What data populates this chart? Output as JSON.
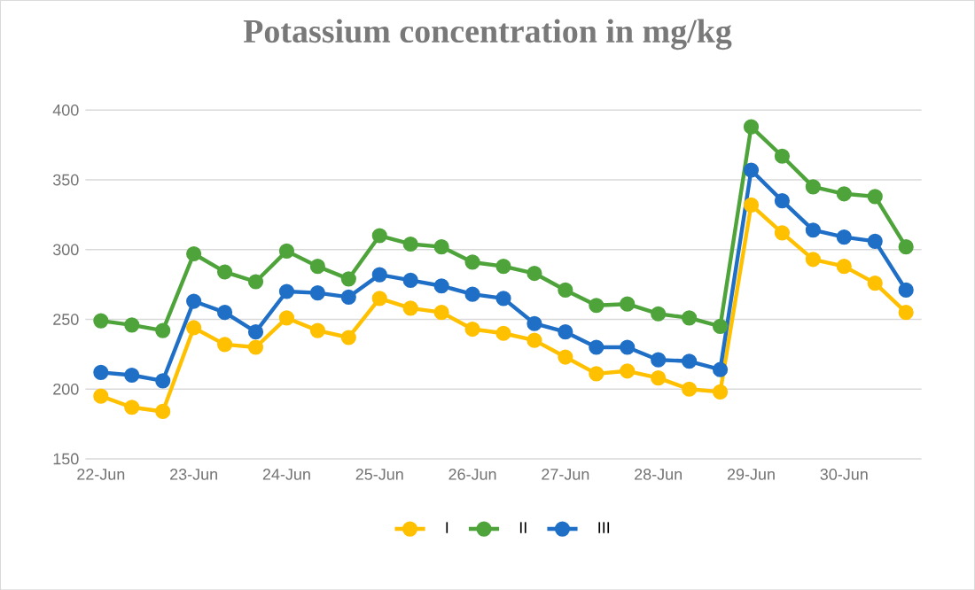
{
  "chart_data": {
    "type": "line",
    "title": "Potassium concentration in mg/kg",
    "categories": [
      "22-Jun",
      null,
      null,
      "23-Jun",
      null,
      null,
      "24-Jun",
      null,
      null,
      "25-Jun",
      null,
      null,
      "26-Jun",
      null,
      null,
      "27-Jun",
      null,
      null,
      "28-Jun",
      null,
      null,
      "29-Jun",
      null,
      null,
      "30-Jun",
      null,
      null
    ],
    "series": [
      {
        "name": "I",
        "color": "#ffc000",
        "values": [
          195,
          187,
          184,
          244,
          232,
          230,
          251,
          242,
          237,
          265,
          258,
          255,
          243,
          240,
          235,
          223,
          211,
          213,
          208,
          200,
          198,
          332,
          312,
          293,
          288,
          276,
          255
        ]
      },
      {
        "name": "II",
        "color": "#4ea43a",
        "values": [
          249,
          246,
          242,
          297,
          284,
          277,
          299,
          288,
          279,
          310,
          304,
          302,
          291,
          288,
          283,
          271,
          260,
          261,
          254,
          251,
          245,
          388,
          367,
          345,
          340,
          338,
          302
        ]
      },
      {
        "name": "III",
        "color": "#1f6fc6",
        "values": [
          212,
          210,
          206,
          263,
          255,
          241,
          270,
          269,
          266,
          282,
          278,
          274,
          268,
          265,
          247,
          241,
          230,
          230,
          221,
          220,
          214,
          357,
          335,
          314,
          309,
          306,
          271
        ]
      }
    ],
    "ylim": [
      150,
      400
    ],
    "yticks": [
      150,
      200,
      250,
      300,
      350,
      400
    ],
    "grid": "y",
    "legend": "bottom",
    "marker": "circle",
    "line_style": "solid"
  }
}
